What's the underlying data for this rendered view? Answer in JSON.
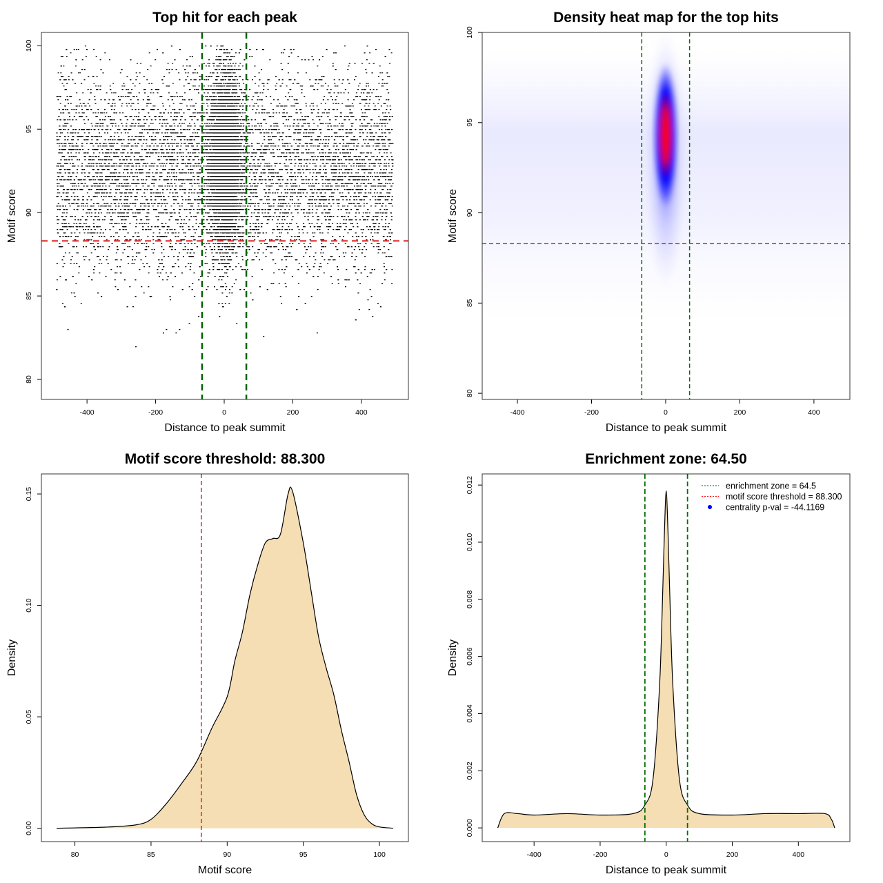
{
  "chart_data": [
    {
      "type": "scatter",
      "title": "Top hit for each peak",
      "xlabel": "Distance to peak summit",
      "ylabel": "Motif score",
      "xlim": [
        -533,
        537
      ],
      "ylim": [
        78.8,
        100.8
      ],
      "xticks": [
        -400,
        -200,
        0,
        200,
        400
      ],
      "yticks": [
        80,
        85,
        90,
        95,
        100
      ],
      "vlines": [
        -64.5,
        64.5
      ],
      "hline": 88.3,
      "colors": {
        "points": "#000000",
        "vlines": "#006400",
        "hline": "#dd2222"
      }
    },
    {
      "type": "heatmap",
      "title": "Density heat map for the top hits",
      "xlabel": "Distance to peak summit",
      "ylabel": "Motif score",
      "xlim": [
        -495,
        497
      ],
      "ylim": [
        79.66,
        100
      ],
      "xticks": [
        -400,
        -200,
        0,
        200,
        400
      ],
      "yticks": [
        80,
        85,
        90,
        95,
        100
      ],
      "hotspot": {
        "x": 0,
        "y": 94.3
      },
      "vlines": [
        -64.5,
        64.5
      ],
      "hline": 88.3,
      "colors": {
        "low": "#ffffff",
        "mid": "#0000ff",
        "high": "#ff0000",
        "vlines": "#007000",
        "hline": "#cc2222"
      }
    },
    {
      "type": "area",
      "title": "Motif score threshold: 88.300",
      "xlabel": "Motif score",
      "ylabel": "Density",
      "xlim": [
        77.8,
        101.9
      ],
      "ylim": [
        -0.006,
        0.159
      ],
      "xticks": [
        80,
        85,
        90,
        95,
        100
      ],
      "yticks": [
        0.0,
        0.05,
        0.1,
        0.15
      ],
      "ytick_labels": [
        "0.00",
        "0.05",
        "0.10",
        "0.15"
      ],
      "vline": 88.3,
      "x": [
        78.8,
        82,
        84,
        85,
        86,
        87,
        88,
        89,
        90,
        90.5,
        91,
        91.5,
        92,
        92.5,
        93,
        93.5,
        94,
        94.3,
        95,
        95.5,
        96,
        96.5,
        97,
        97.5,
        98,
        98.5,
        99,
        99.5,
        100,
        100.9
      ],
      "y": [
        0,
        0.0005,
        0.0015,
        0.004,
        0.011,
        0.02,
        0.03,
        0.045,
        0.059,
        0.075,
        0.088,
        0.105,
        0.118,
        0.128,
        0.13,
        0.132,
        0.15,
        0.151,
        0.128,
        0.107,
        0.086,
        0.072,
        0.06,
        0.044,
        0.03,
        0.015,
        0.006,
        0.002,
        0.0006,
        0
      ],
      "colors": {
        "fill": "#f5deb3",
        "line": "#000000",
        "vline": "#dd2222"
      }
    },
    {
      "type": "area",
      "title": "Enrichment zone: 64.50",
      "xlabel": "Distance to peak summit",
      "ylabel": "Density",
      "xlim": [
        -557,
        556
      ],
      "ylim": [
        -0.00048,
        0.01239
      ],
      "xticks": [
        -400,
        -200,
        0,
        200,
        400
      ],
      "yticks": [
        0,
        0.002,
        0.004,
        0.006,
        0.008,
        0.01,
        0.012
      ],
      "ytick_labels": [
        "0.000",
        "0.002",
        "0.004",
        "0.006",
        "0.008",
        "0.010",
        "0.012"
      ],
      "vlines": [
        -64.5,
        64.5
      ],
      "x": [
        -510,
        -490,
        -450,
        -400,
        -300,
        -200,
        -100,
        -64.5,
        -40,
        -20,
        -10,
        -5,
        0,
        5,
        10,
        20,
        40,
        64.5,
        100,
        200,
        300,
        400,
        480,
        500,
        510
      ],
      "y": [
        0,
        0.0005,
        0.0005,
        0.00045,
        0.0005,
        0.00045,
        0.0005,
        0.0008,
        0.0017,
        0.005,
        0.0085,
        0.0105,
        0.0118,
        0.0105,
        0.0085,
        0.005,
        0.0017,
        0.0008,
        0.0005,
        0.00045,
        0.0005,
        0.0005,
        0.0005,
        0.0003,
        0
      ],
      "legend": {
        "placement": "top-right",
        "entries": [
          {
            "label": "enrichment zone = 64.5",
            "symbol": "dotted-line",
            "color": "#006400"
          },
          {
            "label": "motif score threshold = 88.300",
            "symbol": "dotted-line",
            "color": "#ff0000"
          },
          {
            "label": "centrality p-val = -44.1169",
            "symbol": "dot",
            "color": "#0000ff"
          }
        ]
      },
      "colors": {
        "fill": "#f5deb3",
        "line": "#000000",
        "vlines": "#007000"
      }
    }
  ]
}
